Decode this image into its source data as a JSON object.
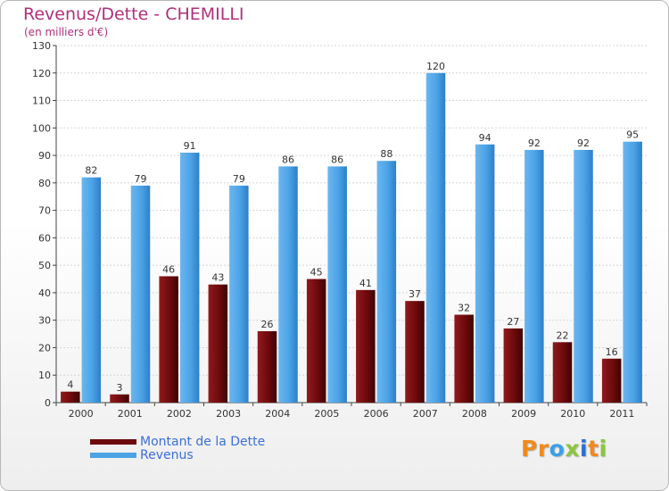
{
  "header": {
    "title": "Revenus/Dette - CHEMILLI",
    "subtitle": "(en milliers d'€)"
  },
  "legend": {
    "items": [
      {
        "label": "Montant de la Dette",
        "color": "#6e0a0c"
      },
      {
        "label": "Revenus",
        "color": "#4ba3e6"
      }
    ]
  },
  "logo": {
    "letters": [
      {
        "ch": "P",
        "color": "#f08a1c"
      },
      {
        "ch": "r",
        "color": "#f08a1c"
      },
      {
        "ch": "o",
        "color": "#3aa0e6"
      },
      {
        "ch": "x",
        "color": "#8cc63f"
      },
      {
        "ch": "i",
        "color": "#2a6fd0"
      },
      {
        "ch": "t",
        "color": "#f08a1c"
      },
      {
        "ch": "i",
        "color": "#8cc63f"
      }
    ]
  },
  "chart_data": {
    "type": "bar",
    "title": "Revenus/Dette - CHEMILLI",
    "subtitle": "(en milliers d'€)",
    "categories": [
      "2000",
      "2001",
      "2002",
      "2003",
      "2004",
      "2005",
      "2006",
      "2007",
      "2008",
      "2009",
      "2010",
      "2011"
    ],
    "series": [
      {
        "name": "Montant de la Dette",
        "color": "#6e0a0c",
        "values": [
          4,
          3,
          46,
          43,
          26,
          45,
          41,
          37,
          32,
          27,
          22,
          16
        ]
      },
      {
        "name": "Revenus",
        "color": "#4ba3e6",
        "values": [
          82,
          79,
          91,
          79,
          86,
          86,
          88,
          120,
          94,
          92,
          92,
          95
        ]
      }
    ],
    "ylim": [
      0,
      130
    ],
    "yticks": [
      0,
      10,
      20,
      30,
      40,
      50,
      60,
      70,
      80,
      90,
      100,
      110,
      120,
      130
    ],
    "grid": true,
    "legend_position": "bottom-left"
  }
}
